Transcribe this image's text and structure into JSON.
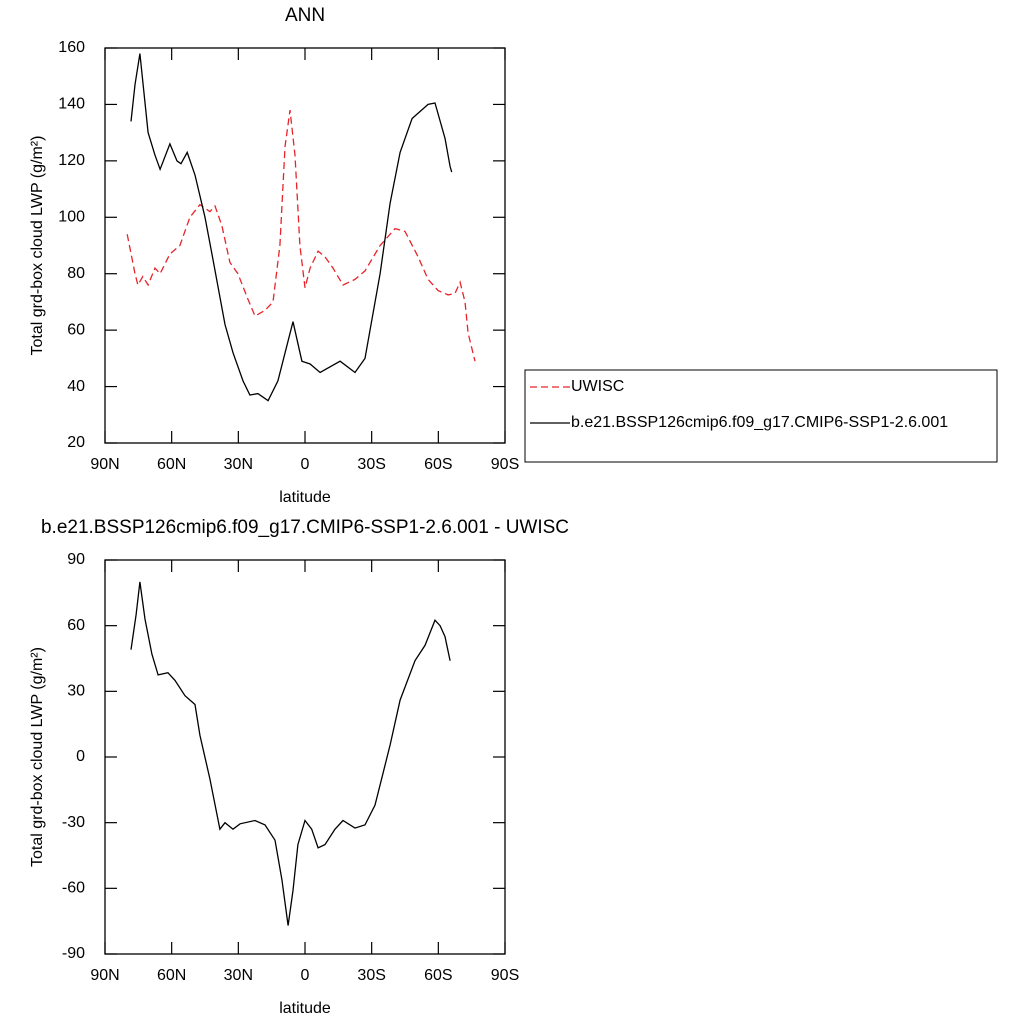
{
  "chart_data": [
    {
      "type": "line",
      "title": "ANN",
      "x_label": "latitude",
      "y_label": "Total grd-box cloud LWP (g/m²)",
      "xlim": [
        90,
        -90
      ],
      "xticks": [
        {
          "value": 90,
          "label": "90N"
        },
        {
          "value": 60,
          "label": "60N"
        },
        {
          "value": 30,
          "label": "30N"
        },
        0,
        {
          "value": -30,
          "label": "30S"
        },
        {
          "value": -60,
          "label": "60S"
        },
        {
          "value": -90,
          "label": "90S"
        }
      ],
      "ylim": [
        20,
        160
      ],
      "yticks": [
        20,
        40,
        60,
        80,
        100,
        120,
        140,
        160
      ],
      "legend": "right",
      "series": [
        {
          "name": "UWISC",
          "color": "#e8242a",
          "dash": true,
          "x": [
            80,
            76.5,
            75.2,
            73,
            70.6,
            67.5,
            65.2,
            60.8,
            56.3,
            51.8,
            47.3,
            42.8,
            40.5,
            37.4,
            33.8,
            30.2,
            25.7,
            22.5,
            18,
            14.4,
            11.3,
            9,
            6.75,
            4.5,
            2.3,
            0,
            -2.3,
            -5.9,
            -9,
            -12.6,
            -17.1,
            -22.5,
            -27,
            -33.8,
            -40.5,
            -45,
            -50.9,
            -55.4,
            -59.9,
            -64.4,
            -67.5,
            -69.8,
            -72,
            -73.4,
            -76.5
          ],
          "values": [
            94,
            80,
            76,
            79,
            76,
            82,
            80,
            87,
            90,
            100,
            104.5,
            102,
            104,
            97,
            84,
            80,
            71,
            65,
            67,
            70,
            90,
            125,
            138,
            122,
            90,
            75,
            82,
            88,
            86,
            82,
            76,
            78,
            81,
            90,
            96,
            95,
            86,
            78,
            74,
            72.5,
            73,
            77,
            70,
            59,
            49
          ]
        },
        {
          "name": "b.e21.BSSP126cmip6.f09_g17.CMIP6-SSP1-2.6.001",
          "color": "#000000",
          "dash": false,
          "x": [
            78.3,
            76.5,
            74.3,
            70.6,
            67.5,
            65.2,
            60.8,
            57.6,
            55.8,
            53,
            49.5,
            45,
            41.4,
            36,
            32.4,
            27.9,
            24.8,
            21.2,
            16.6,
            12.2,
            5.4,
            1.4,
            -2.3,
            -6.8,
            -15.8,
            -22.5,
            -27,
            -33.8,
            -38.3,
            -42.8,
            -48.2,
            -55.4,
            -58.5,
            -63,
            -65.3,
            -66
          ],
          "values": [
            134,
            147,
            158,
            130,
            122,
            117,
            126,
            120,
            119,
            123,
            115,
            100,
            85,
            62,
            52,
            42,
            37,
            37.5,
            35,
            42,
            63,
            49,
            48,
            45,
            49,
            45,
            50,
            80,
            105,
            123,
            135,
            140,
            140.5,
            128,
            118,
            116
          ]
        }
      ]
    },
    {
      "type": "line",
      "title": "b.e21.BSSP126cmip6.f09_g17.CMIP6-SSP1-2.6.001 - UWISC",
      "x_label": "latitude",
      "y_label": "Total grd-box cloud LWP (g/m²)",
      "xlim": [
        90,
        -90
      ],
      "xticks": [
        {
          "value": 90,
          "label": "90N"
        },
        {
          "value": 60,
          "label": "60N"
        },
        {
          "value": 30,
          "label": "30N"
        },
        0,
        {
          "value": -30,
          "label": "30S"
        },
        {
          "value": -60,
          "label": "60S"
        },
        {
          "value": -90,
          "label": "90S"
        }
      ],
      "ylim": [
        -90,
        90
      ],
      "yticks": [
        -90,
        -60,
        -30,
        0,
        30,
        60,
        90
      ],
      "series": [
        {
          "color": "#000000",
          "dash": false,
          "x": [
            78.3,
            76,
            74.3,
            72,
            68.9,
            66.1,
            61.7,
            58.5,
            54,
            49.5,
            47.3,
            42.8,
            38.3,
            36,
            32.4,
            29.2,
            22.5,
            18,
            13.5,
            10.4,
            7.6,
            5.4,
            3.2,
            0,
            -3,
            -5.9,
            -9,
            -13.5,
            -17.1,
            -22.5,
            -27,
            -31.5,
            -38.3,
            -42.8,
            -49.5,
            -54,
            -58.5,
            -60.8,
            -63,
            -65.3
          ],
          "values": [
            49,
            65,
            80,
            63,
            47,
            37.5,
            38.5,
            35,
            28,
            24,
            10,
            -10,
            -33,
            -30,
            -33,
            -30.5,
            -29,
            -31,
            -38,
            -56,
            -77,
            -61,
            -40,
            -29,
            -33,
            -41.5,
            -40,
            -33,
            -29,
            -32.5,
            -31,
            -22,
            5.5,
            26,
            44,
            51,
            62.5,
            60,
            55,
            44
          ]
        }
      ]
    }
  ]
}
